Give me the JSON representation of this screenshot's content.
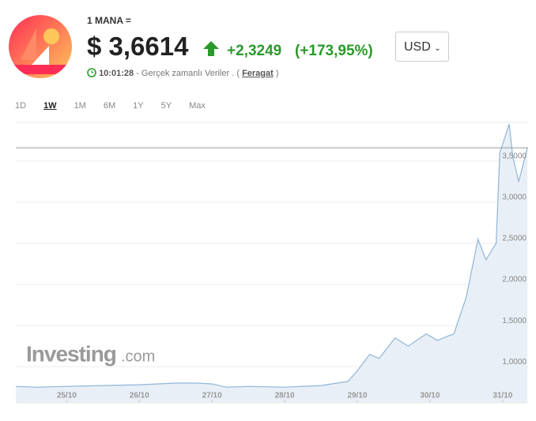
{
  "header": {
    "pair": "1 MANA =",
    "price": "$ 3,6614",
    "change": "+2,3249",
    "change_pct": "(+173,95%)",
    "currency": "USD",
    "time": "10:01:28",
    "realtime": "- Gerçek zamanlı Veriler . (",
    "disclaimer": "Feragat",
    "close_paren": ")"
  },
  "tabs": [
    "1D",
    "1W",
    "1M",
    "6M",
    "1Y",
    "5Y",
    "Max"
  ],
  "watermark": {
    "brand": "Investing",
    "suffix": ".com"
  },
  "chart_data": {
    "type": "area",
    "color": "#8fb5d8",
    "fill": "#e8eff6",
    "x": [
      24.3,
      24.6,
      25.0,
      25.5,
      26.0,
      26.5,
      26.8,
      27.0,
      27.2,
      27.5,
      28.0,
      28.5,
      28.87,
      29.0,
      29.17,
      29.3,
      29.52,
      29.7,
      29.95,
      30.1,
      30.33,
      30.5,
      30.66,
      30.77,
      30.91,
      30.96,
      31.09,
      31.14,
      31.22,
      31.34
    ],
    "values": [
      0.76,
      0.75,
      0.76,
      0.77,
      0.78,
      0.8,
      0.8,
      0.79,
      0.75,
      0.76,
      0.75,
      0.77,
      0.82,
      0.95,
      1.15,
      1.1,
      1.35,
      1.25,
      1.4,
      1.32,
      1.4,
      1.85,
      2.55,
      2.3,
      2.5,
      3.6,
      3.95,
      3.55,
      3.25,
      3.66
    ],
    "reference_line": 3.6614,
    "xlim": [
      24.3,
      31.35
    ],
    "ylim": [
      0.56,
      3.97
    ],
    "xticks": [
      {
        "value": 25,
        "label": "25/10"
      },
      {
        "value": 26,
        "label": "26/10"
      },
      {
        "value": 27,
        "label": "27/10"
      },
      {
        "value": 28,
        "label": "28/10"
      },
      {
        "value": 29,
        "label": "29/10"
      },
      {
        "value": 30,
        "label": "30/10"
      },
      {
        "value": 31,
        "label": "31/10"
      }
    ],
    "yticks": [
      {
        "value": 1,
        "label": "1,0000"
      },
      {
        "value": 1.5,
        "label": "1,5000"
      },
      {
        "value": 2,
        "label": "2,0000"
      },
      {
        "value": 2.5,
        "label": "2,5000"
      },
      {
        "value": 3,
        "label": "3,0000"
      },
      {
        "value": 3.5,
        "label": "3,5000"
      }
    ],
    "grid": true
  }
}
